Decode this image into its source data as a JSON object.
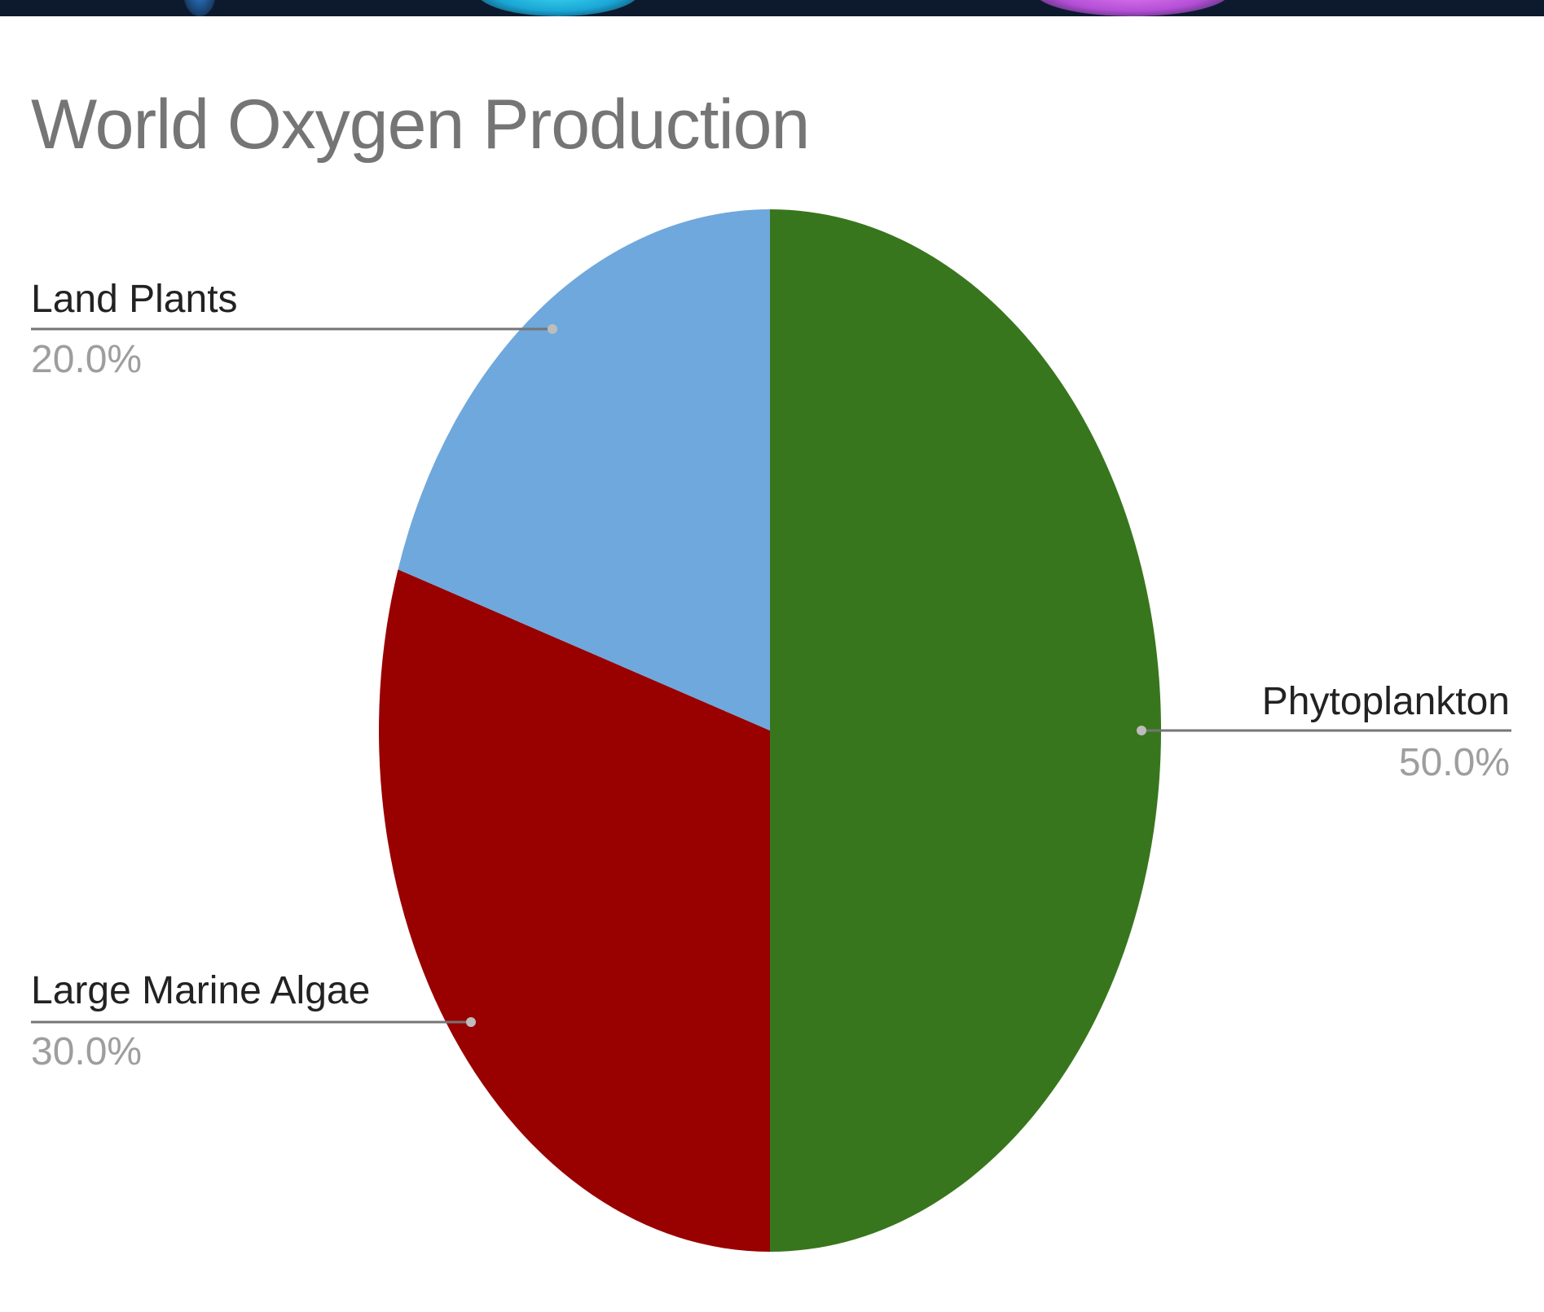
{
  "chart_data": {
    "type": "pie",
    "title": "World Oxygen Production",
    "slices": [
      {
        "label": "Phytoplankton",
        "value": 50.0,
        "percent_label": "50.0%",
        "color": "#38761d"
      },
      {
        "label": "Large Marine Algae",
        "value": 30.0,
        "percent_label": "30.0%",
        "color": "#990000"
      },
      {
        "label": "Land Plants",
        "value": 20.0,
        "percent_label": "20.0%",
        "color": "#6fa8dc"
      }
    ],
    "start_angle": "12 o'clock",
    "direction": "clockwise",
    "legend": "none",
    "labels": "outside with leader lines"
  }
}
